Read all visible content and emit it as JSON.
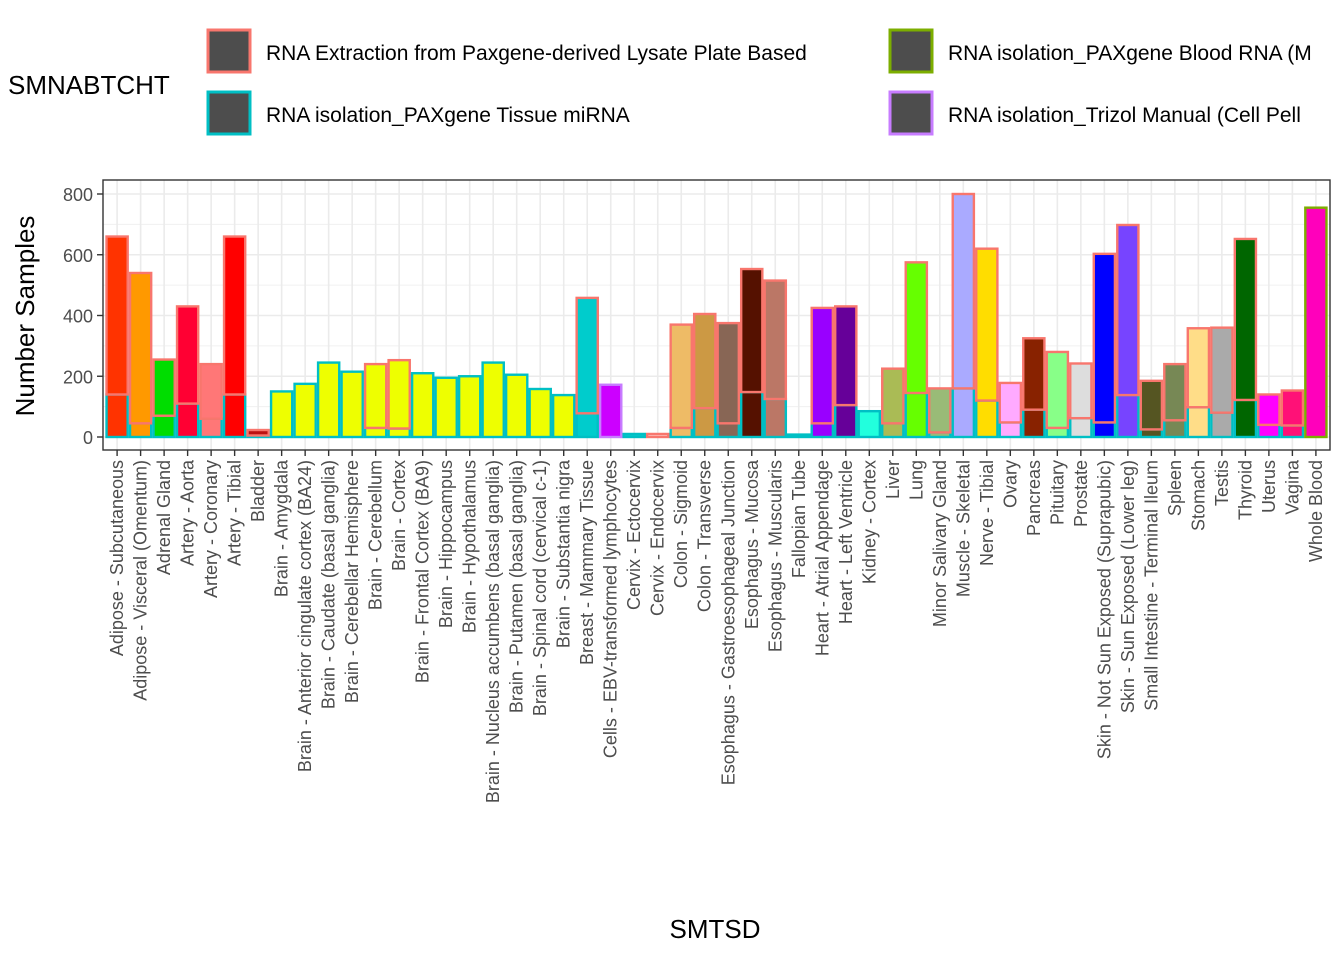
{
  "chart_data": {
    "type": "bar",
    "xlabel": "SMTSD",
    "ylabel": "Number Samples",
    "ylim": [
      0,
      830
    ],
    "yticks": [
      0,
      200,
      400,
      600,
      800
    ],
    "grid": true,
    "legend": {
      "title": "SMNABTCHT",
      "placement": "top",
      "entries": [
        {
          "label": "RNA Extraction from Paxgene-derived Lysate Plate Based",
          "outline": "#F8766D"
        },
        {
          "label": "RNA isolation_PAXgene Blood RNA (M",
          "outline": "#7CAE00"
        },
        {
          "label": "RNA isolation_PAXgene Tissue miRNA",
          "outline": "#00BFC4"
        },
        {
          "label": "RNA isolation_Trizol Manual (Cell Pell",
          "outline": "#C77CFF"
        }
      ]
    },
    "batch_outline_colors": {
      "lysate": "#F8766D",
      "blood": "#7CAE00",
      "mirna": "#00BFC4",
      "trizol": "#C77CFF"
    },
    "categories": [
      "Adipose - Subcutaneous",
      "Adipose - Visceral (Omentum)",
      "Adrenal Gland",
      "Artery - Aorta",
      "Artery - Coronary",
      "Artery - Tibial",
      "Bladder",
      "Brain - Amygdala",
      "Brain - Anterior cingulate cortex (BA24)",
      "Brain - Caudate (basal ganglia)",
      "Brain - Cerebellar Hemisphere",
      "Brain - Cerebellum",
      "Brain - Cortex",
      "Brain - Frontal Cortex (BA9)",
      "Brain - Hippocampus",
      "Brain - Hypothalamus",
      "Brain - Nucleus accumbens (basal ganglia)",
      "Brain - Putamen (basal ganglia)",
      "Brain - Spinal cord (cervical c-1)",
      "Brain - Substantia nigra",
      "Breast - Mammary Tissue",
      "Cells - EBV-transformed lymphocytes",
      "Cervix - Ectocervix",
      "Cervix - Endocervix",
      "Colon - Sigmoid",
      "Colon - Transverse",
      "Esophagus - Gastroesophageal Junction",
      "Esophagus - Mucosa",
      "Esophagus - Muscularis",
      "Fallopian Tube",
      "Heart - Atrial Appendage",
      "Heart - Left Ventricle",
      "Kidney - Cortex",
      "Liver",
      "Lung",
      "Minor Salivary Gland",
      "Muscle - Skeletal",
      "Nerve - Tibial",
      "Ovary",
      "Pancreas",
      "Pituitary",
      "Prostate",
      "Skin - Not Sun Exposed (Suprapubic)",
      "Skin - Sun Exposed (Lower leg)",
      "Small Intestine - Terminal Ileum",
      "Spleen",
      "Stomach",
      "Testis",
      "Thyroid",
      "Uterus",
      "Vagina",
      "Whole Blood"
    ],
    "fill_colors": [
      "#FF3300",
      "#FF9900",
      "#00DD00",
      "#FF0033",
      "#FF7777",
      "#FF0000",
      "#BB1111",
      "#EEFF00",
      "#EEFF00",
      "#EEFF00",
      "#EEFF00",
      "#EEFF00",
      "#EEFF00",
      "#EEFF00",
      "#EEFF00",
      "#EEFF00",
      "#EEFF00",
      "#EEFF00",
      "#EEFF00",
      "#EEFF00",
      "#00CCCC",
      "#CC00FF",
      "#00CCCC",
      "#FFCCCC",
      "#EEBB66",
      "#CC9944",
      "#886655",
      "#551100",
      "#BB7766",
      "#00CCCC",
      "#9900FF",
      "#660099",
      "#22FFDD",
      "#AABB55",
      "#66FF00",
      "#99BB77",
      "#AAAAFF",
      "#FFDD00",
      "#FFAAFF",
      "#882200",
      "#88FF88",
      "#DDDDDD",
      "#0000FF",
      "#7744FF",
      "#555522",
      "#778855",
      "#FFDD88",
      "#AAAAAA",
      "#006600",
      "#FF00FF",
      "#FF1177",
      "#FF00BB"
    ],
    "series": [
      {
        "name": "RNA Extraction from Paxgene-derived Lysate Plate Based",
        "key": "lysate",
        "values": [
          520,
          495,
          185,
          320,
          180,
          520,
          18,
          0,
          0,
          0,
          0,
          210,
          225,
          0,
          0,
          0,
          0,
          0,
          0,
          0,
          380,
          0,
          0,
          10,
          340,
          310,
          330,
          405,
          390,
          0,
          380,
          325,
          0,
          180,
          430,
          145,
          640,
          500,
          130,
          235,
          250,
          180,
          555,
          560,
          160,
          185,
          260,
          280,
          530,
          100,
          115,
          0
        ]
      },
      {
        "name": "RNA isolation_PAXgene Blood RNA (M",
        "key": "blood",
        "values": [
          0,
          0,
          0,
          0,
          0,
          0,
          0,
          0,
          0,
          0,
          0,
          0,
          0,
          0,
          0,
          0,
          0,
          0,
          0,
          0,
          0,
          0,
          0,
          0,
          0,
          0,
          0,
          0,
          0,
          0,
          0,
          0,
          0,
          0,
          0,
          0,
          0,
          0,
          0,
          0,
          0,
          0,
          0,
          0,
          0,
          0,
          0,
          0,
          0,
          0,
          0,
          755
        ]
      },
      {
        "name": "RNA isolation_PAXgene Tissue miRNA",
        "key": "mirna",
        "values": [
          140,
          45,
          70,
          110,
          60,
          140,
          5,
          150,
          175,
          245,
          215,
          30,
          28,
          210,
          195,
          200,
          245,
          205,
          158,
          138,
          78,
          0,
          10,
          0,
          30,
          95,
          45,
          148,
          125,
          8,
          45,
          105,
          85,
          45,
          145,
          15,
          160,
          120,
          48,
          90,
          30,
          62,
          48,
          138,
          25,
          55,
          98,
          80,
          122,
          40,
          38,
          0
        ]
      },
      {
        "name": "RNA isolation_Trizol Manual (Cell Pell",
        "key": "trizol",
        "values": [
          0,
          0,
          0,
          0,
          0,
          0,
          0,
          0,
          0,
          0,
          0,
          0,
          0,
          0,
          0,
          0,
          0,
          0,
          0,
          0,
          0,
          172,
          0,
          0,
          0,
          0,
          0,
          0,
          0,
          0,
          0,
          0,
          0,
          0,
          0,
          0,
          0,
          0,
          0,
          0,
          0,
          0,
          0,
          0,
          0,
          0,
          0,
          0,
          0,
          0,
          0,
          0
        ]
      }
    ]
  }
}
